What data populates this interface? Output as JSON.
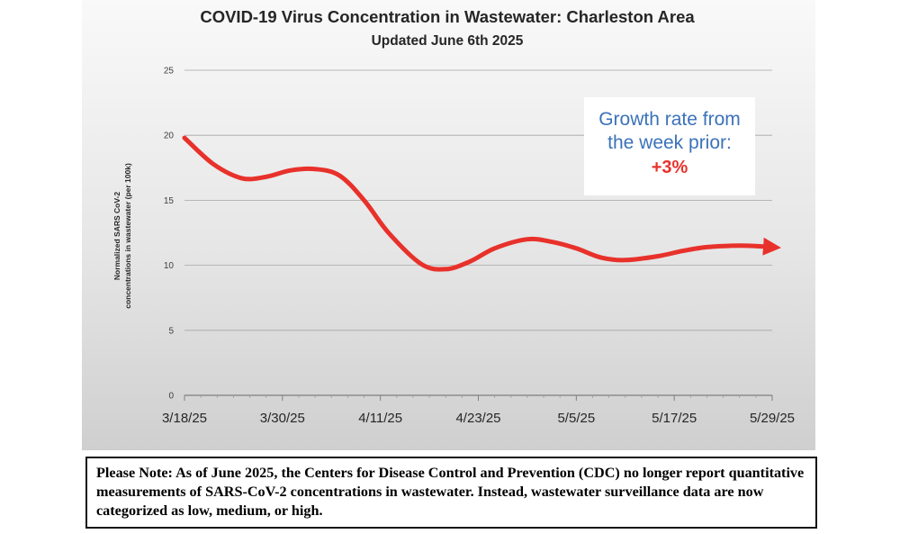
{
  "chart_data": {
    "type": "line",
    "title": "COVID-19 Virus Concentration in Wastewater: Charleston Area",
    "subtitle": "Updated June 6th 2025",
    "xlabel": "",
    "ylabel_line1": "Normalized SARS CoV-2",
    "ylabel_line2": "concentrations in wastewater (per 100k)",
    "ylim": [
      0,
      25
    ],
    "y_ticks": [
      0,
      5,
      10,
      15,
      20,
      25
    ],
    "x_tick_labels": [
      "3/18/25",
      "3/30/25",
      "4/11/25",
      "4/23/25",
      "5/5/25",
      "5/17/25",
      "5/29/25"
    ],
    "x_range_days": [
      0,
      72
    ],
    "grid": true,
    "series": [
      {
        "name": "Normalized SARS CoV-2 concentration",
        "color": "#e8312b",
        "x_days": [
          0,
          3.5,
          7,
          10,
          13,
          16,
          19,
          22,
          25,
          29,
          32,
          35,
          38,
          42,
          45,
          48,
          51,
          54,
          58,
          61,
          64,
          67,
          69,
          72
        ],
        "values": [
          19.8,
          17.8,
          16.7,
          16.8,
          17.3,
          17.4,
          16.9,
          15.0,
          12.5,
          10.1,
          9.7,
          10.3,
          11.3,
          12.0,
          11.8,
          11.3,
          10.6,
          10.4,
          10.7,
          11.1,
          11.4,
          11.5,
          11.5,
          11.4
        ]
      }
    ],
    "annotation": {
      "line1": "Growth rate from",
      "line2": "the week prior:",
      "value": "+3%"
    }
  },
  "note": {
    "text": "Please Note: As of June 2025, the Centers for Disease Control and Prevention (CDC) no longer report quantitative measurements of SARS-CoV-2 concentrations in wastewater. Instead, wastewater surveillance data are now categorized as low, medium, or high."
  }
}
